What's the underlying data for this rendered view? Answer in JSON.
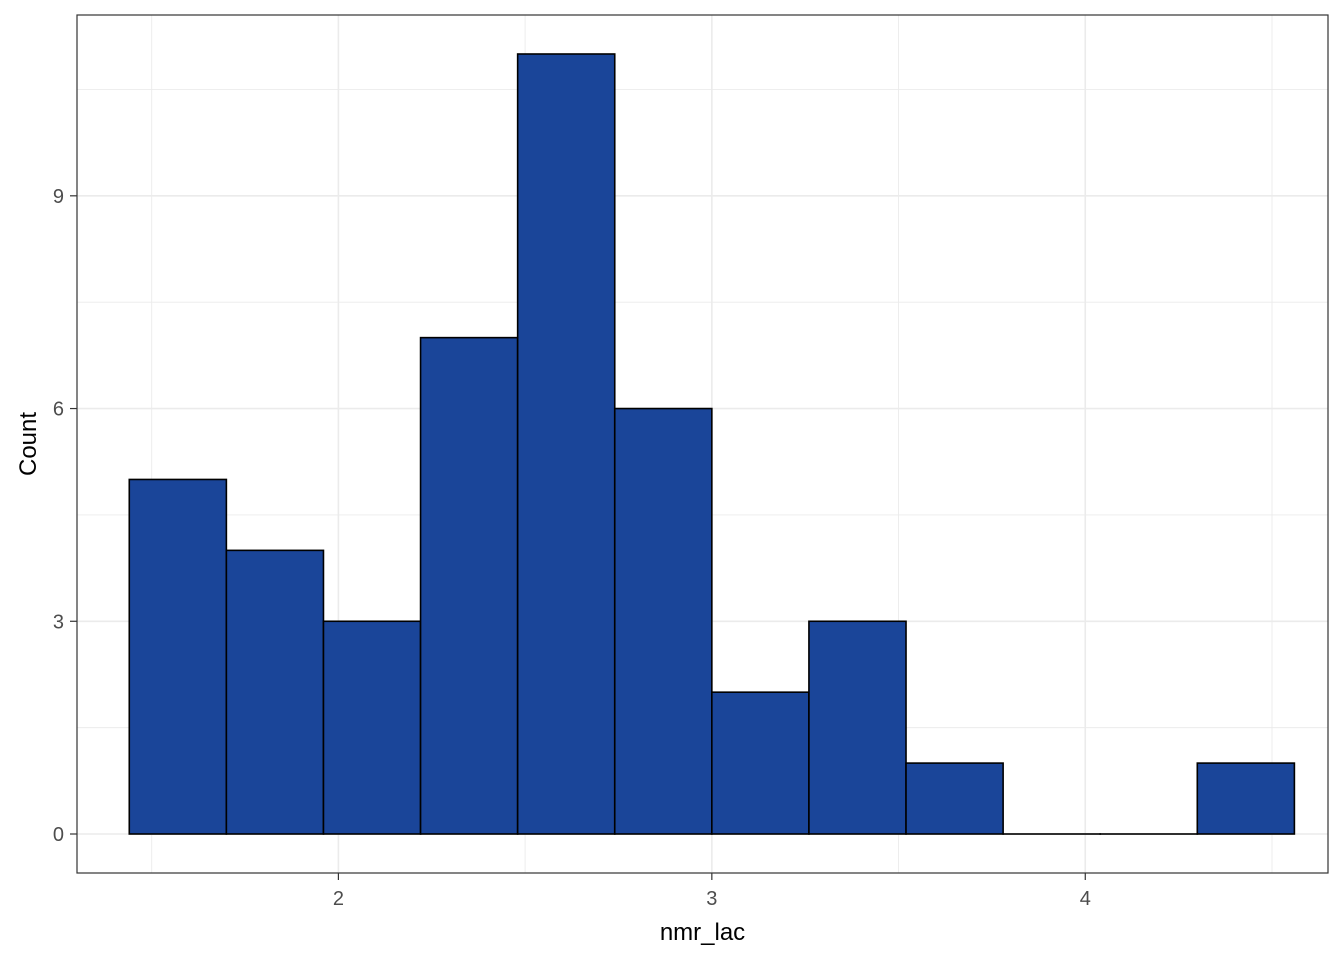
{
  "chart_data": {
    "type": "bar",
    "title": "",
    "xlabel": "nmr_lac",
    "ylabel": "Count",
    "bin_edges": [
      1.44,
      1.7,
      1.96,
      2.22,
      2.48,
      2.74,
      3.0,
      3.26,
      3.52,
      3.78,
      4.04,
      4.3,
      4.56
    ],
    "values": [
      5,
      4,
      3,
      7,
      11,
      6,
      2,
      3,
      1,
      0,
      0,
      1
    ],
    "xlim": [
      1.3,
      4.65
    ],
    "ylim": [
      -0.55,
      11.55
    ],
    "xticks": [
      2,
      3,
      4
    ],
    "xtick_labels": [
      "2",
      "3",
      "4"
    ],
    "yticks": [
      0,
      3,
      6,
      9
    ],
    "ytick_labels": [
      "0",
      "3",
      "6",
      "9"
    ],
    "grid": true,
    "bar_fill": "#1A4599",
    "bar_edge": "#000000",
    "grid_color": "#EBEBEB",
    "panel_border": "#333333"
  }
}
